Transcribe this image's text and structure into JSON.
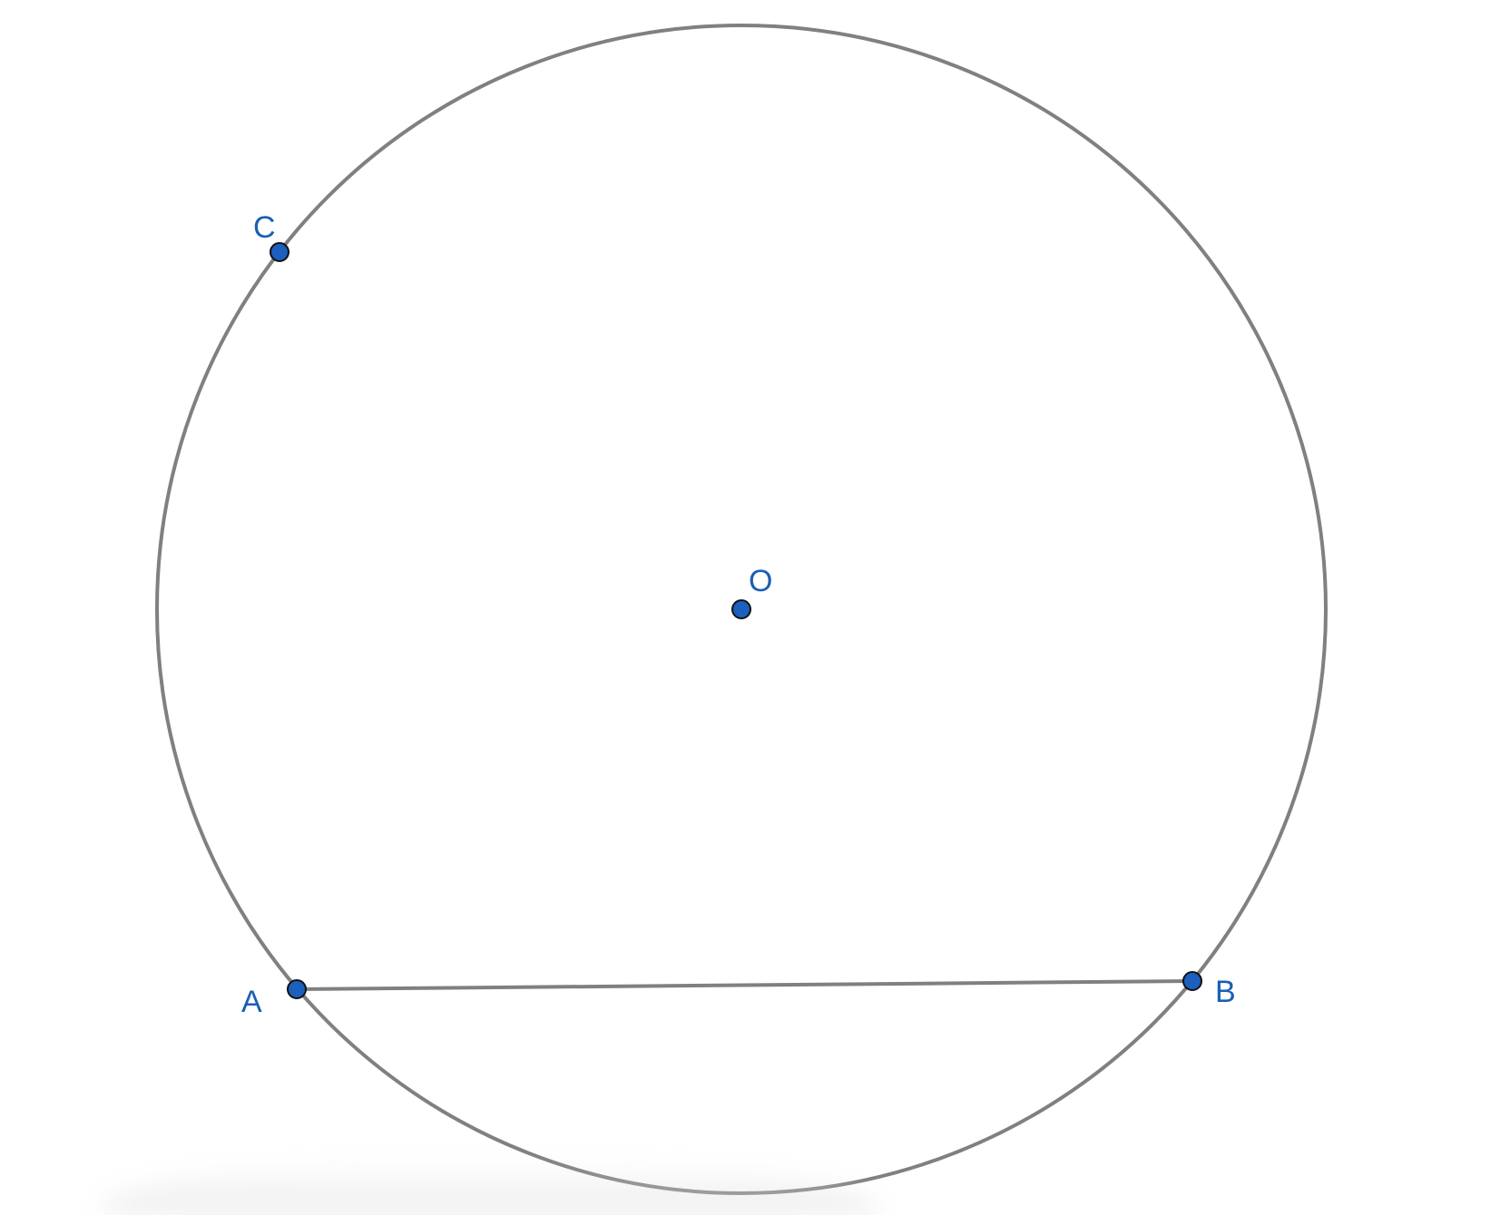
{
  "colors": {
    "stroke": "#808080",
    "point_fill": "#1c5fbd",
    "point_outline": "#111111",
    "label": "#1a5fb4",
    "background": "#ffffff"
  },
  "points": {
    "O": {
      "label": "O"
    },
    "A": {
      "label": "A"
    },
    "B": {
      "label": "B"
    },
    "C": {
      "label": "C"
    }
  },
  "segments": [
    {
      "from": "A",
      "to": "B"
    }
  ]
}
